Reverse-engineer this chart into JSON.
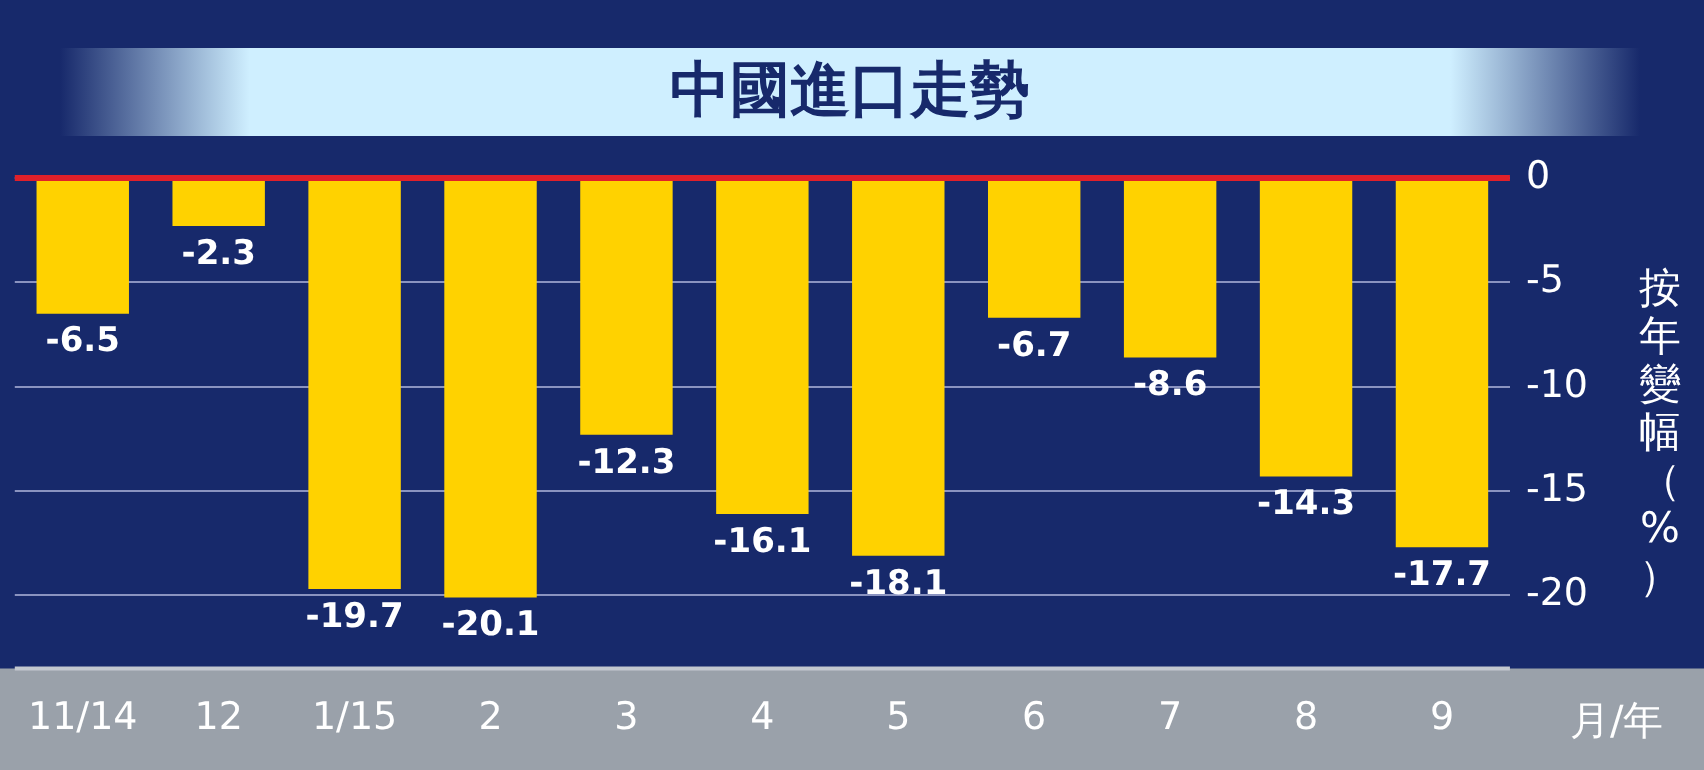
{
  "chart_data": {
    "type": "bar",
    "title": "中國進口走勢",
    "xlabel": "月/年",
    "ylabel": "按年變幅（%）",
    "categories": [
      "11/14",
      "12",
      "1/15",
      "2",
      "3",
      "4",
      "5",
      "6",
      "7",
      "8",
      "9"
    ],
    "values": [
      -6.5,
      -2.3,
      -19.7,
      -20.1,
      -12.3,
      -16.1,
      -18.1,
      -6.7,
      -8.6,
      -14.3,
      -17.7
    ],
    "color": "#ffd200",
    "ylim": [
      -23.5,
      0
    ],
    "yticks": [
      0,
      -5,
      -10,
      -15,
      -20
    ],
    "grid": "y",
    "data_labels": true,
    "ref_lines": [
      {
        "axis": "y",
        "value": 0,
        "color": "#e0202a"
      }
    ]
  }
}
